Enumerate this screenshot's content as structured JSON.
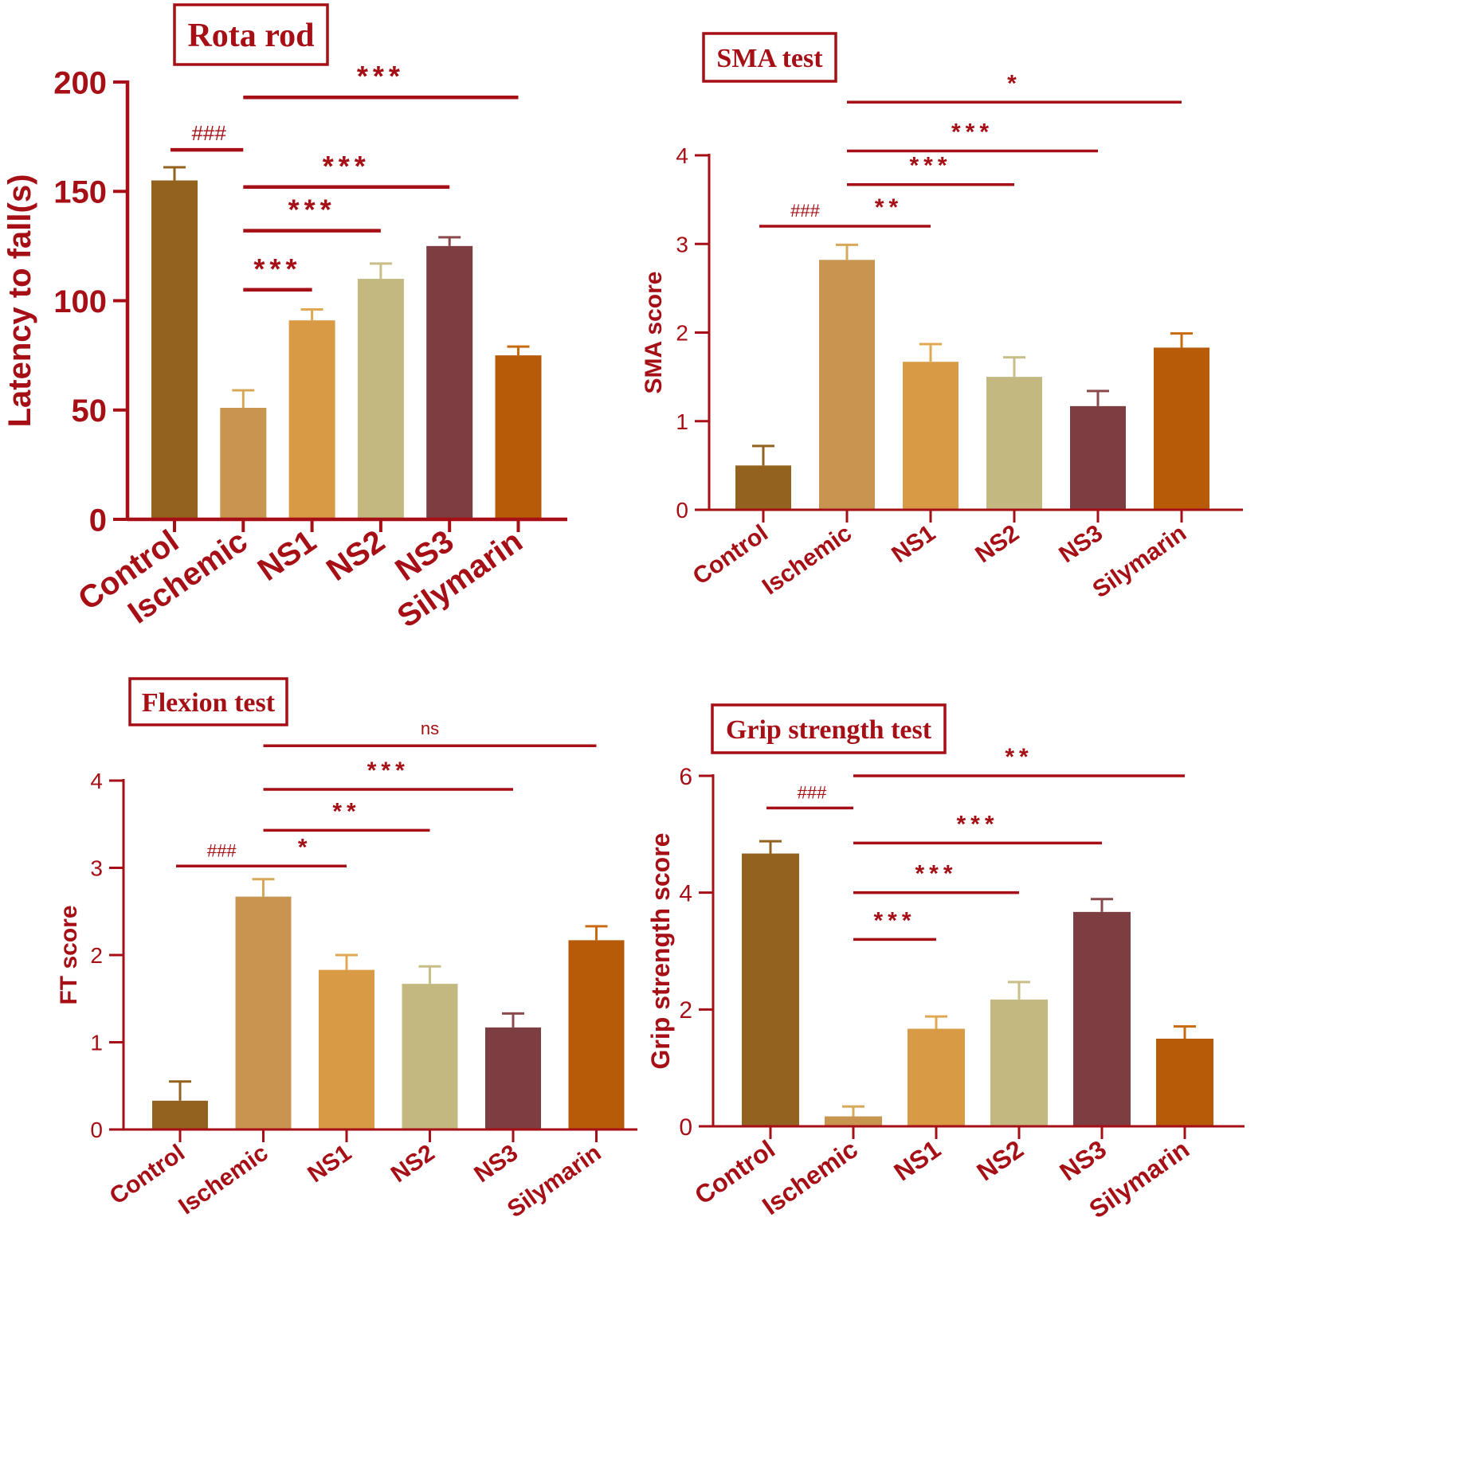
{
  "colors": {
    "accent": "#A50F15",
    "text": "#A50F15",
    "bars": [
      "#93621F",
      "#C89550",
      "#D89A45",
      "#C2B880",
      "#7C3E40",
      "#B85B08"
    ],
    "error_bars": [
      "#93621F",
      "#D8A85A",
      "#E0A850",
      "#C8BE88",
      "#8A4A4C",
      "#C86A10"
    ]
  },
  "chart_data": [
    {
      "type": "bar",
      "title": "Rota rod",
      "ylabel": "Latency to fall(s)",
      "xlabel": "",
      "categories": [
        "Control",
        "Ischemic",
        "NS1",
        "NS2",
        "NS3",
        "Silymarin"
      ],
      "values": [
        155,
        51,
        91,
        110,
        125,
        75
      ],
      "errors": [
        6,
        8,
        5,
        7,
        4,
        4
      ],
      "ylim": [
        0,
        200
      ],
      "yticks": [
        0,
        50,
        100,
        150,
        200
      ],
      "ytick_labels": [
        "0",
        "50",
        "100",
        "150",
        "200"
      ],
      "significance": [
        {
          "from": 0,
          "to": 1,
          "y": 169,
          "label": "###"
        },
        {
          "from": 1,
          "to": 2,
          "y": 105,
          "label": "***"
        },
        {
          "from": 1,
          "to": 3,
          "y": 132,
          "label": "***"
        },
        {
          "from": 1,
          "to": 4,
          "y": 152,
          "label": "***"
        },
        {
          "from": 1,
          "to": 5,
          "y": 193,
          "label": "***"
        }
      ]
    },
    {
      "type": "bar",
      "title": "SMA test",
      "ylabel": "SMA score",
      "xlabel": "",
      "categories": [
        "Control",
        "Ischemic",
        "NS1",
        "NS2",
        "NS3",
        "Silymarin"
      ],
      "values": [
        0.5,
        2.82,
        1.67,
        1.5,
        1.17,
        1.83
      ],
      "errors": [
        0.22,
        0.17,
        0.2,
        0.22,
        0.17,
        0.16
      ],
      "ylim": [
        0,
        4
      ],
      "yticks": [
        0,
        1,
        2,
        3,
        4
      ],
      "ytick_labels": [
        "0",
        "1",
        "2",
        "3",
        "4"
      ],
      "significance": [
        {
          "from": 0,
          "to": 1,
          "y": 3.2,
          "label": "###"
        },
        {
          "from": 1,
          "to": 2,
          "y": 3.2,
          "label": "**"
        },
        {
          "from": 1,
          "to": 3,
          "y": 3.67,
          "label": "***"
        },
        {
          "from": 1,
          "to": 4,
          "y": 4.05,
          "label": "***"
        },
        {
          "from": 1,
          "to": 5,
          "y": 4.6,
          "label": "*"
        }
      ]
    },
    {
      "type": "bar",
      "title": "Flexion test",
      "ylabel": "FT score",
      "xlabel": "",
      "categories": [
        "Control",
        "Ischemic",
        "NS1",
        "NS2",
        "NS3",
        "Silymarin"
      ],
      "values": [
        0.33,
        2.67,
        1.83,
        1.67,
        1.17,
        2.17
      ],
      "errors": [
        0.22,
        0.2,
        0.17,
        0.2,
        0.16,
        0.16
      ],
      "ylim": [
        0,
        4
      ],
      "yticks": [
        0,
        1,
        2,
        3,
        4
      ],
      "ytick_labels": [
        "0",
        "1",
        "2",
        "3",
        "4"
      ],
      "significance": [
        {
          "from": 0,
          "to": 1,
          "y": 3.02,
          "label": "###"
        },
        {
          "from": 1,
          "to": 2,
          "y": 3.02,
          "label": "*"
        },
        {
          "from": 1,
          "to": 3,
          "y": 3.43,
          "label": "**"
        },
        {
          "from": 1,
          "to": 4,
          "y": 3.9,
          "label": "***"
        },
        {
          "from": 1,
          "to": 5,
          "y": 4.4,
          "label": "ns"
        }
      ]
    },
    {
      "type": "bar",
      "title": "Grip strength test",
      "ylabel": "Grip strength score",
      "xlabel": "",
      "categories": [
        "Control",
        "Ischemic",
        "NS1",
        "NS2",
        "NS3",
        "Silymarin"
      ],
      "values": [
        4.67,
        0.17,
        1.67,
        2.17,
        3.67,
        1.5
      ],
      "errors": [
        0.21,
        0.17,
        0.21,
        0.3,
        0.22,
        0.21
      ],
      "ylim": [
        0,
        6
      ],
      "yticks": [
        0,
        2,
        4,
        6
      ],
      "ytick_labels": [
        "0",
        "2",
        "4",
        "6"
      ],
      "significance": [
        {
          "from": 0,
          "to": 1,
          "y": 5.45,
          "label": "###"
        },
        {
          "from": 1,
          "to": 2,
          "y": 3.2,
          "label": "***"
        },
        {
          "from": 1,
          "to": 3,
          "y": 4.0,
          "label": "***"
        },
        {
          "from": 1,
          "to": 4,
          "y": 4.85,
          "label": "***"
        },
        {
          "from": 1,
          "to": 5,
          "y": 6.0,
          "label": "**"
        }
      ]
    }
  ]
}
